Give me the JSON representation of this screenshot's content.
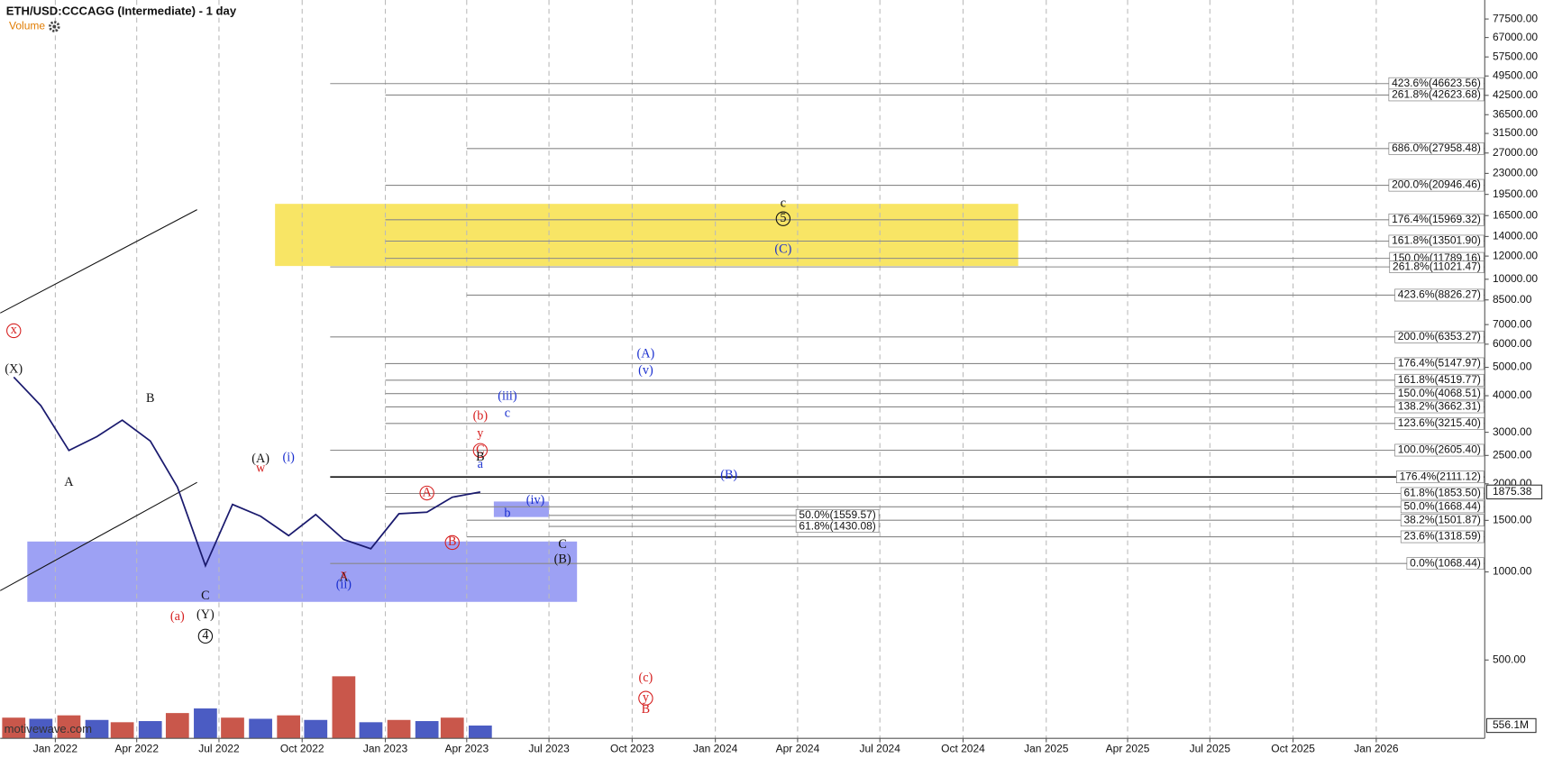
{
  "header": {
    "title": "ETH/USD:CCCAGG (Intermediate) - 1 day",
    "indicator": "Volume",
    "watermark": "motivewave.com"
  },
  "chart_data": {
    "type": "line",
    "log_scale": true,
    "grid": "x",
    "color": "#1a1a6e",
    "x": [
      "2021-11",
      "2021-12",
      "2022-01",
      "2022-02",
      "2022-03",
      "2022-04",
      "2022-05",
      "2022-06",
      "2022-07",
      "2022-08",
      "2022-09",
      "2022-10",
      "2022-11",
      "2022-12",
      "2023-01",
      "2023-02",
      "2023-03",
      "2023-04"
    ],
    "values": [
      4630,
      3700,
      2600,
      2900,
      3300,
      2800,
      1950,
      1050,
      1700,
      1550,
      1330,
      1570,
      1290,
      1200,
      1580,
      1600,
      1800,
      1875
    ],
    "xlim": [
      "2021-11",
      "2026-05"
    ],
    "xticks": [
      {
        "value": "2022-01",
        "label": "Jan 2022"
      },
      {
        "value": "2022-04",
        "label": "Apr 2022"
      },
      {
        "value": "2022-07",
        "label": "Jul 2022"
      },
      {
        "value": "2022-10",
        "label": "Oct 2022"
      },
      {
        "value": "2023-01",
        "label": "Jan 2023"
      },
      {
        "value": "2023-04",
        "label": "Apr 2023"
      },
      {
        "value": "2023-07",
        "label": "Jul 2023"
      },
      {
        "value": "2023-10",
        "label": "Oct 2023"
      },
      {
        "value": "2024-01",
        "label": "Jan 2024"
      },
      {
        "value": "2024-04",
        "label": "Apr 2024"
      },
      {
        "value": "2024-07",
        "label": "Jul 2024"
      },
      {
        "value": "2024-10",
        "label": "Oct 2024"
      },
      {
        "value": "2025-01",
        "label": "Jan 2025"
      },
      {
        "value": "2025-04",
        "label": "Apr 2025"
      },
      {
        "value": "2025-07",
        "label": "Jul 2025"
      },
      {
        "value": "2025-10",
        "label": "Oct 2025"
      },
      {
        "value": "2026-01",
        "label": "Jan 2026"
      }
    ],
    "ylim": [
      270,
      90000
    ],
    "yticks": [
      {
        "value": 77500,
        "label": "77500.00"
      },
      {
        "value": 67000,
        "label": "67000.00"
      },
      {
        "value": 57500,
        "label": "57500.00"
      },
      {
        "value": 49500,
        "label": "49500.00"
      },
      {
        "value": 42500,
        "label": "42500.00"
      },
      {
        "value": 36500,
        "label": "36500.00"
      },
      {
        "value": 31500,
        "label": "31500.00"
      },
      {
        "value": 27000,
        "label": "27000.00"
      },
      {
        "value": 23000,
        "label": "23000.00"
      },
      {
        "value": 19500,
        "label": "19500.00"
      },
      {
        "value": 16500,
        "label": "16500.00"
      },
      {
        "value": 14000,
        "label": "14000.00"
      },
      {
        "value": 12000,
        "label": "12000.00"
      },
      {
        "value": 10000,
        "label": "10000.00"
      },
      {
        "value": 8500,
        "label": "8500.00"
      },
      {
        "value": 7000,
        "label": "7000.00"
      },
      {
        "value": 6000,
        "label": "6000.00"
      },
      {
        "value": 5000,
        "label": "5000.00"
      },
      {
        "value": 4000,
        "label": "4000.00"
      },
      {
        "value": 3000,
        "label": "3000.00"
      },
      {
        "value": 2500,
        "label": "2500.00"
      },
      {
        "value": 2000,
        "label": "2000.00"
      },
      {
        "value": 1500,
        "label": "1500.00"
      },
      {
        "value": 1000,
        "label": "1000.00"
      },
      {
        "value": 500,
        "label": "500.00"
      }
    ],
    "current_price": 1875.38,
    "volume": {
      "color": "#c0392b",
      "ylim": [
        0,
        3000
      ],
      "values": [
        900,
        850,
        1000,
        800,
        700,
        750,
        1100,
        1300,
        900,
        850,
        1000,
        800,
        2700,
        700,
        800,
        750,
        900,
        556.1
      ],
      "current": {
        "value": 556.1,
        "label": "556.1M"
      }
    },
    "zones": [
      {
        "from": "2022-09",
        "to": "2024-12",
        "low": 11100,
        "high": 18100,
        "color": "#f7e04a"
      },
      {
        "from": "2021-12",
        "to": "2023-08",
        "low": 790,
        "high": 1270,
        "color": "#7c82f0"
      },
      {
        "from": "2023-05",
        "to": "2023-07",
        "low": 1540,
        "high": 1740,
        "color": "#7c82f0"
      }
    ],
    "fib_levels": [
      {
        "label": "423.6%(46623.56)",
        "value": 46623.56,
        "from": "2022-11"
      },
      {
        "label": "261.8%(42623.68)",
        "value": 42623.68,
        "from": "2023-01"
      },
      {
        "label": "686.0%(27958.48)",
        "value": 27958.48,
        "from": "2023-04"
      },
      {
        "label": "200.0%(20946.46)",
        "value": 20946.46,
        "from": "2023-01"
      },
      {
        "label": "176.4%(15969.32)",
        "value": 15969.32,
        "from": "2023-01"
      },
      {
        "label": "161.8%(13501.90)",
        "value": 13501.9,
        "from": "2023-01"
      },
      {
        "label": "150.0%(11789.16)",
        "value": 11789.16,
        "from": "2023-01"
      },
      {
        "label": "261.8%(11021.47)",
        "value": 11021.47,
        "from": "2022-11"
      },
      {
        "label": "423.6%(8826.27)",
        "value": 8826.27,
        "from": "2023-04"
      },
      {
        "label": "200.0%(6353.27)",
        "value": 6353.27,
        "from": "2022-11"
      },
      {
        "label": "176.4%(5147.97)",
        "value": 5147.97,
        "from": "2023-01"
      },
      {
        "label": "161.8%(4519.77)",
        "value": 4519.77,
        "from": "2023-01"
      },
      {
        "label": "150.0%(4068.51)",
        "value": 4068.51,
        "from": "2023-01"
      },
      {
        "label": "138.2%(3662.31)",
        "value": 3662.31,
        "from": "2023-01"
      },
      {
        "label": "123.6%(3215.40)",
        "value": 3215.4,
        "from": "2023-01"
      },
      {
        "label": "100.0%(2605.40)",
        "value": 2605.4,
        "from": "2022-11"
      },
      {
        "label": "176.4%(2111.12)",
        "value": 2111.12,
        "from": "2022-11"
      },
      {
        "label": "61.8%(1853.50)",
        "value": 1853.5,
        "from": "2023-01"
      },
      {
        "label": "50.0%(1668.44)",
        "value": 1668.44,
        "from": "2023-01"
      },
      {
        "label": "38.2%(1501.87)",
        "value": 1501.87,
        "from": "2023-04"
      },
      {
        "label": "23.6%(1318.59)",
        "value": 1318.59,
        "from": "2023-04"
      },
      {
        "label": "0.0%(1068.44)",
        "value": 1068.44,
        "from": "2022-11"
      },
      {
        "label": "50.0%(1559.57)",
        "value": 1559.57,
        "from": "2023-07",
        "to": "2024-07"
      },
      {
        "label": "61.8%(1430.08)",
        "value": 1430.08,
        "from": "2023-07",
        "to": "2024-07"
      }
    ],
    "annotations": [
      {
        "text": "x",
        "x": "2021-11",
        "y": 6670,
        "color": "#d62020",
        "circled": true
      },
      {
        "text": "(X)",
        "x": "2021-11",
        "y": 4900,
        "color": "#111",
        "circled": false
      },
      {
        "text": "A",
        "x": "2022-01",
        "y": 2014,
        "color": "#111",
        "circled": false
      },
      {
        "text": "B",
        "x": "2022-04",
        "y": 3900,
        "color": "#111",
        "circled": false
      },
      {
        "text": "C",
        "x": "2022-06",
        "y": 824,
        "color": "#111",
        "circled": false
      },
      {
        "text": "(a)",
        "x": "2022-05",
        "y": 700,
        "color": "#d62020",
        "circled": false
      },
      {
        "text": "(Y)",
        "x": "2022-06",
        "y": 710,
        "color": "#111",
        "circled": false
      },
      {
        "text": "4",
        "x": "2022-06",
        "y": 603,
        "color": "#111",
        "circled": true
      },
      {
        "text": "(A)",
        "x": "2022-08",
        "y": 2420,
        "color": "#111",
        "circled": false
      },
      {
        "text": "w",
        "x": "2022-08",
        "y": 2250,
        "color": "#d62020",
        "circled": false
      },
      {
        "text": "(i)",
        "x": "2022-09",
        "y": 2450,
        "color": "#1a2fcf",
        "circled": false
      },
      {
        "text": "A",
        "x": "2022-11",
        "y": 955,
        "color": "#111",
        "circled": false
      },
      {
        "text": "x",
        "x": "2022-11",
        "y": 975,
        "color": "#d62020",
        "circled": false
      },
      {
        "text": "(ii)",
        "x": "2022-11",
        "y": 900,
        "color": "#1a2fcf",
        "circled": false
      },
      {
        "text": "A",
        "x": "2023-02",
        "y": 1860,
        "color": "#d62020",
        "circled": true
      },
      {
        "text": "B",
        "x": "2023-03",
        "y": 1260,
        "color": "#d62020",
        "circled": true
      },
      {
        "text": "(b)",
        "x": "2023-04",
        "y": 3390,
        "color": "#d62020",
        "circled": false
      },
      {
        "text": "y",
        "x": "2023-04",
        "y": 2950,
        "color": "#d62020",
        "circled": false
      },
      {
        "text": "C",
        "x": "2023-04",
        "y": 2600,
        "color": "#d62020",
        "circled": true
      },
      {
        "text": "B",
        "x": "2023-04",
        "y": 2460,
        "color": "#111",
        "circled": false
      },
      {
        "text": "a",
        "x": "2023-04",
        "y": 2320,
        "color": "#1a2fcf",
        "circled": false
      },
      {
        "text": "b",
        "x": "2023-05",
        "y": 1580,
        "color": "#1a2fcf",
        "circled": false
      },
      {
        "text": "(iii)",
        "x": "2023-05",
        "y": 3960,
        "color": "#1a2fcf",
        "circled": false
      },
      {
        "text": "c",
        "x": "2023-05",
        "y": 3470,
        "color": "#1a2fcf",
        "circled": false
      },
      {
        "text": "(iv)",
        "x": "2023-06",
        "y": 1750,
        "color": "#1a2fcf",
        "circled": false
      },
      {
        "text": "C",
        "x": "2023-07",
        "y": 1233,
        "color": "#111",
        "circled": false
      },
      {
        "text": "(B)",
        "x": "2023-07",
        "y": 1100,
        "color": "#111",
        "circled": false
      },
      {
        "text": "(A)",
        "x": "2023-10",
        "y": 5530,
        "color": "#1a2fcf",
        "circled": false
      },
      {
        "text": "(v)",
        "x": "2023-10",
        "y": 4850,
        "color": "#1a2fcf",
        "circled": false
      },
      {
        "text": "(B)",
        "x": "2024-01",
        "y": 2130,
        "color": "#1a2fcf",
        "circled": false
      },
      {
        "text": "c",
        "x": "2024-03",
        "y": 18100,
        "color": "#111",
        "circled": false
      },
      {
        "text": "5",
        "x": "2024-03",
        "y": 16100,
        "color": "#111",
        "circled": true
      },
      {
        "text": "(C)",
        "x": "2024-03",
        "y": 12600,
        "color": "#1a2fcf",
        "circled": false
      },
      {
        "text": "(c)",
        "x": "2023-10",
        "y": 432,
        "color": "#d62020",
        "circled": false
      },
      {
        "text": "y",
        "x": "2023-10",
        "y": 370,
        "color": "#d62020",
        "circled": true
      },
      {
        "text": "B",
        "x": "2023-10",
        "y": 337,
        "color": "#d62020",
        "circled": false
      }
    ]
  }
}
